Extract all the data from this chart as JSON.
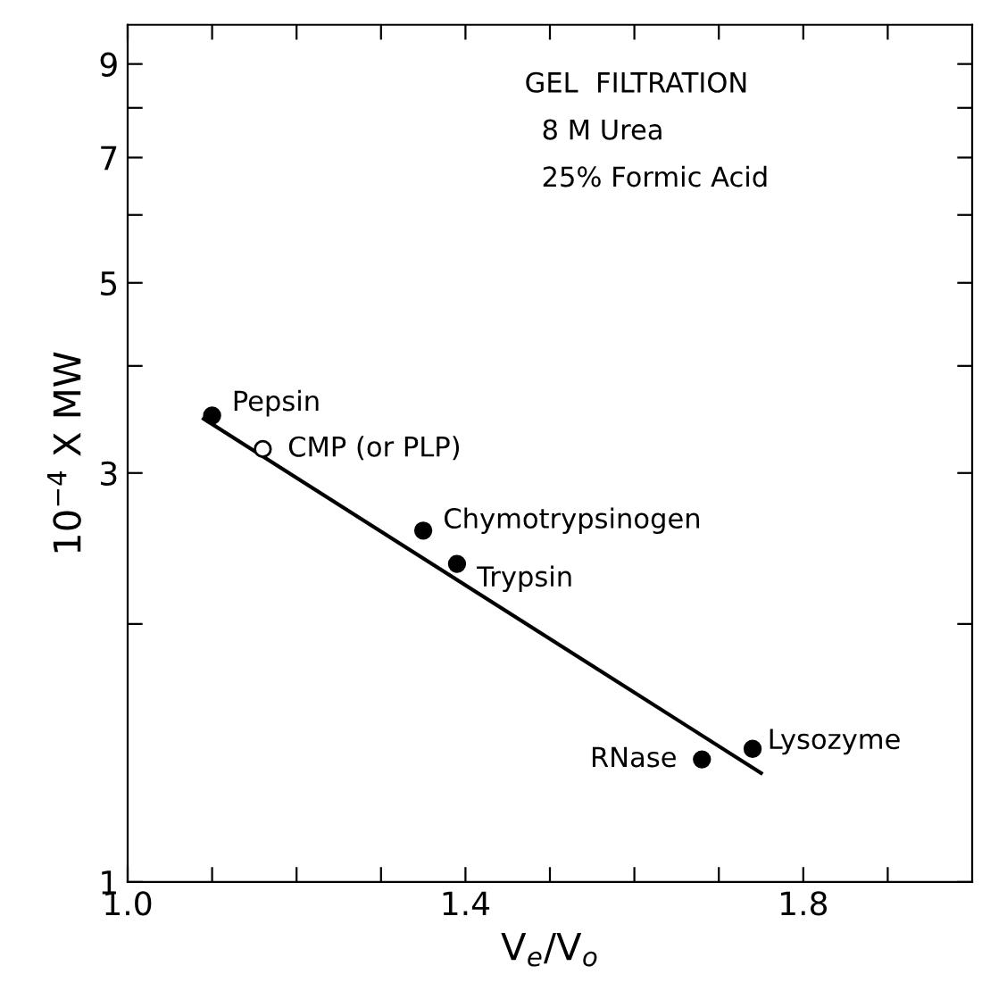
{
  "chart_data": {
    "type": "scatter",
    "xlabel": "V$_{e}$/V$_{o}$",
    "ylabel": "10$^{−4}$ X MW",
    "log": "y",
    "xlim": [
      1.0,
      2.0
    ],
    "ylim": [
      1,
      10
    ],
    "xticks": [
      {
        "value": 1.0,
        "label": "1.0"
      },
      {
        "value": 1.1,
        "label": null
      },
      {
        "value": 1.2,
        "label": null
      },
      {
        "value": 1.3,
        "label": null
      },
      {
        "value": 1.4,
        "label": "1.4"
      },
      {
        "value": 1.5,
        "label": null
      },
      {
        "value": 1.6,
        "label": null
      },
      {
        "value": 1.7,
        "label": null
      },
      {
        "value": 1.8,
        "label": "1.8"
      },
      {
        "value": 1.9,
        "label": null
      }
    ],
    "yticks": [
      1,
      {
        "value": 2,
        "label": null
      },
      3,
      {
        "value": 4,
        "label": null
      },
      5,
      {
        "value": 6,
        "label": null
      },
      7,
      {
        "value": 8,
        "label": null
      },
      9
    ],
    "marker": "circle",
    "grid": false,
    "legend": false,
    "series": [
      {
        "color": "#000000",
        "x": [
          1.1,
          1.35,
          1.39,
          1.68,
          1.74
        ],
        "values": [
          3.5,
          2.57,
          2.35,
          1.39,
          1.43
        ]
      },
      {
        "color": "#ffffff",
        "x": [
          1.16
        ],
        "values": [
          3.2
        ]
      },
      {
        "type": "line",
        "color": "#000000",
        "marker": "none",
        "x": [
          1.09,
          1.75
        ],
        "values": [
          3.47,
          1.34
        ]
      }
    ],
    "annotations": [
      {
        "text": "Pepsin",
        "x": 1.1,
        "y": 3.5
      },
      {
        "text": "CMP (or PLP)",
        "x": 1.16,
        "y": 3.2
      },
      {
        "text": "Chymotrypsinogen",
        "x": 1.35,
        "y": 2.57
      },
      {
        "text": "Trypsin",
        "x": 1.39,
        "y": 2.35
      },
      {
        "text": "RNase",
        "x": 1.68,
        "y": 1.39
      },
      {
        "text": "Lysozyme",
        "x": 1.74,
        "y": 1.43
      },
      "GEL  FILTRATION",
      "8 M Urea",
      "25% Formic Acid"
    ]
  }
}
